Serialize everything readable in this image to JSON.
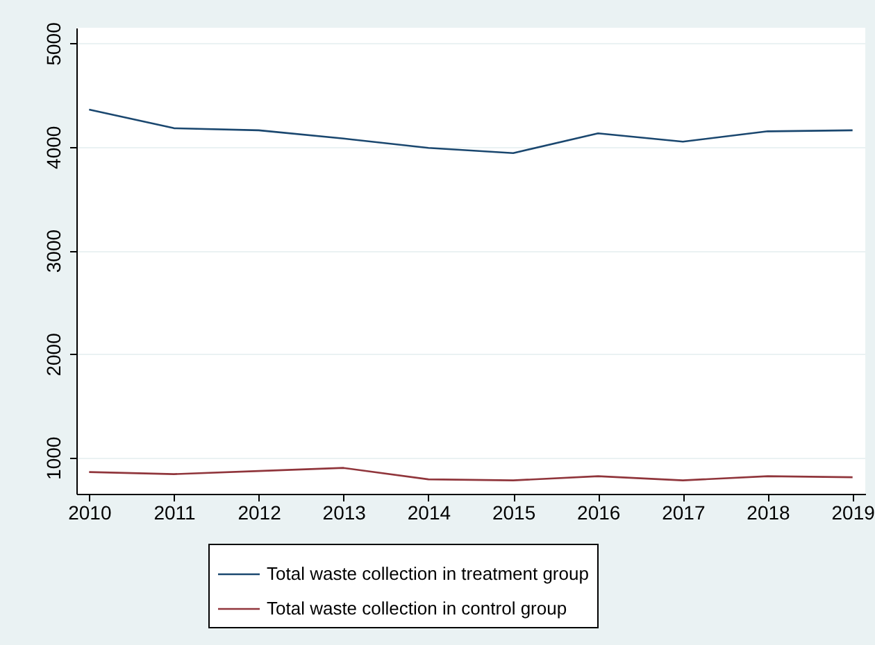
{
  "chart_data": {
    "type": "line",
    "x": [
      2010,
      2011,
      2012,
      2013,
      2014,
      2015,
      2016,
      2017,
      2018,
      2019
    ],
    "series": [
      {
        "name": "Total waste collection in treatment group",
        "color": "#1a476f",
        "values": [
          4360,
          4180,
          4160,
          4080,
          3990,
          3940,
          4130,
          4050,
          4150,
          4160
        ]
      },
      {
        "name": "Total waste collection in control group",
        "color": "#90353b",
        "values": [
          860,
          840,
          870,
          900,
          790,
          780,
          820,
          780,
          820,
          810
        ]
      }
    ],
    "xlim": [
      2009.85,
      2019.15
    ],
    "xticks": [
      2010,
      2011,
      2012,
      2013,
      2014,
      2015,
      2016,
      2017,
      2018,
      2019
    ],
    "ylim": [
      650,
      5150
    ],
    "yticks": [
      1000,
      2000,
      3000,
      4000,
      5000
    ],
    "grid": "y",
    "legend": "bottom",
    "marker": "none",
    "line_style": "solid"
  }
}
